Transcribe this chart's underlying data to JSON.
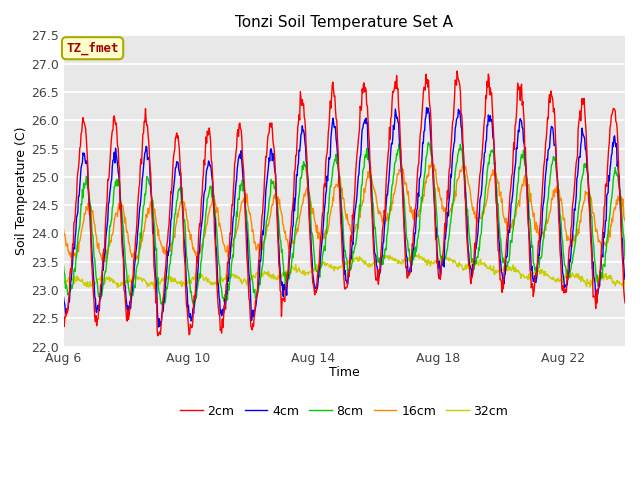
{
  "title": "Tonzi Soil Temperature Set A",
  "xlabel": "Time",
  "ylabel": "Soil Temperature (C)",
  "ylim": [
    22.0,
    27.5
  ],
  "yticks": [
    22.0,
    22.5,
    23.0,
    23.5,
    24.0,
    24.5,
    25.0,
    25.5,
    26.0,
    26.5,
    27.0,
    27.5
  ],
  "xtick_labels": [
    "Aug 6",
    "Aug 10",
    "Aug 14",
    "Aug 18",
    "Aug 22"
  ],
  "xtick_days": [
    0,
    4,
    8,
    12,
    16
  ],
  "total_days": 18,
  "plot_bg": "#e8e8e8",
  "legend_entries": [
    "2cm",
    "4cm",
    "8cm",
    "16cm",
    "32cm"
  ],
  "legend_colors": [
    "#ff0000",
    "#0000ff",
    "#00cc00",
    "#ff8800",
    "#cccc00"
  ],
  "annotation_text": "TZ_fmet",
  "annotation_bg": "#ffffcc",
  "annotation_border": "#aaaa00",
  "annotation_text_color": "#aa0000"
}
